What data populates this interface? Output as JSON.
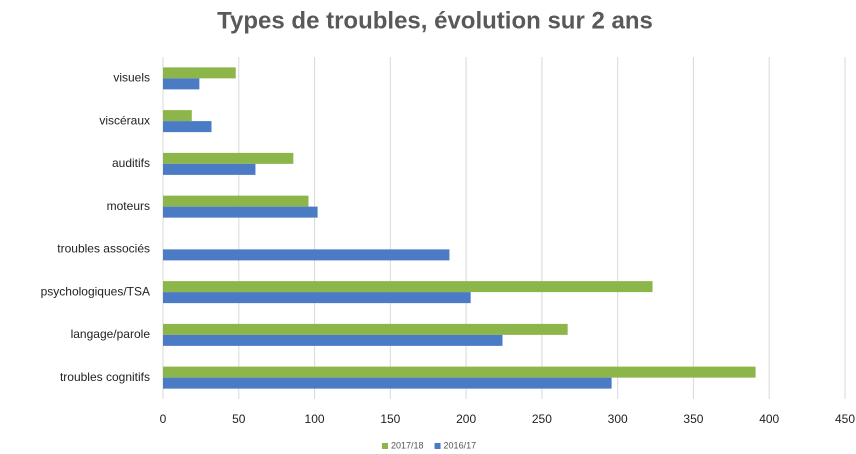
{
  "chart_data": {
    "type": "hbar",
    "title": "Types de troubles, évolution sur 2 ans",
    "categories": [
      "visuels",
      "viscéraux",
      "auditifs",
      "moteurs",
      "troubles associés",
      "psychologiques/TSA",
      "langage/parole",
      "troubles cognitifs"
    ],
    "series": [
      {
        "name": "2017/18",
        "color": "#8cb54a",
        "values": [
          48,
          19,
          86,
          96,
          0,
          323,
          267,
          391
        ]
      },
      {
        "name": "2016/17",
        "color": "#4a7bc4",
        "values": [
          24,
          32,
          61,
          102,
          189,
          203,
          224,
          296
        ]
      }
    ],
    "xlim": [
      0,
      450
    ],
    "xticks": [
      0,
      50,
      100,
      150,
      200,
      250,
      300,
      350,
      400,
      450
    ],
    "grid": true,
    "legend": "bottom"
  }
}
